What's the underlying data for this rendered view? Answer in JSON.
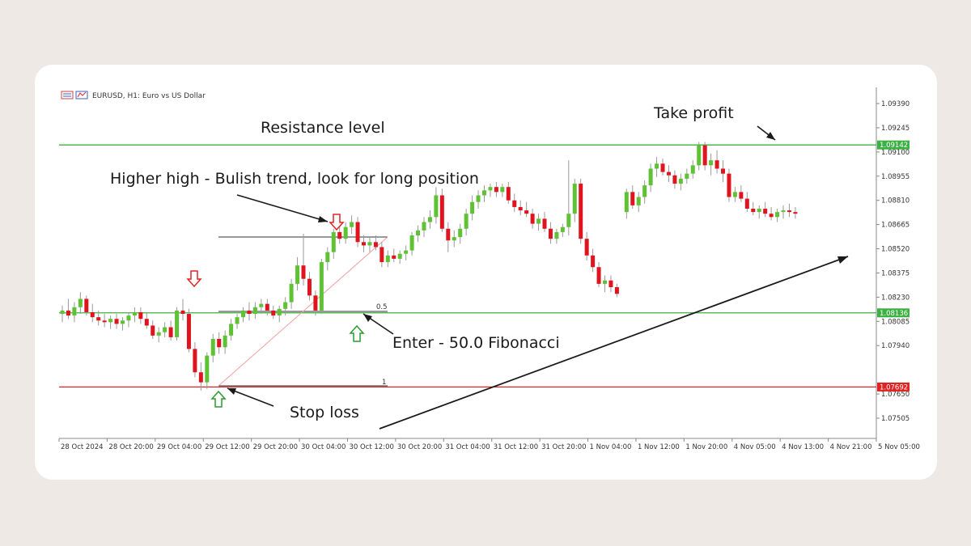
{
  "chart_data": {
    "type": "candlestick",
    "title": "EURUSD, H1:  Euro vs US Dollar",
    "symbol": "EURUSD",
    "timeframe": "H1",
    "description": "Euro vs US Dollar",
    "ylim": [
      1.074,
      1.095
    ],
    "y_ticks": [
      "1.09390",
      "1.09245",
      "1.09100",
      "1.08955",
      "1.08810",
      "1.08665",
      "1.08520",
      "1.08375",
      "1.08230",
      "1.08085",
      "1.07940",
      "1.07650",
      "1.07505"
    ],
    "x_ticks": [
      "28 Oct 2024",
      "28 Oct 20:00",
      "29 Oct 04:00",
      "29 Oct 12:00",
      "29 Oct 20:00",
      "30 Oct 04:00",
      "30 Oct 12:00",
      "30 Oct 20:00",
      "31 Oct 04:00",
      "31 Oct 12:00",
      "31 Oct 20:00",
      "1 Nov 04:00",
      "1 Nov 12:00",
      "1 Nov 20:00",
      "4 Nov 05:00",
      "4 Nov 13:00",
      "4 Nov 21:00",
      "5 Nov 05:00"
    ],
    "levels": [
      {
        "label": "1.09142",
        "value": 1.09142,
        "color": "#3cb043"
      },
      {
        "label": "1.08136",
        "value": 1.08136,
        "color": "#3cb043"
      },
      {
        "label": "1.07692",
        "value": 1.07692,
        "color": "#e02424"
      }
    ],
    "fibonacci": {
      "high": 1.0862,
      "low": 1.077,
      "labels": [
        "0.5",
        "1"
      ]
    },
    "annotations": {
      "resistance": "Resistance level",
      "take_profit": "Take profit",
      "higher_high": "Higher high - Bulish trend, look for long position",
      "enter": "Enter - 50.0 Fibonacci",
      "stop_loss": "Stop loss"
    },
    "colors": {
      "bull": "#5ec234",
      "bear": "#e0141e",
      "wick": "#9a9a9a"
    },
    "candles": [
      {
        "o": 1.0813,
        "h": 1.0818,
        "l": 1.0808,
        "c": 1.0815
      },
      {
        "o": 1.0815,
        "h": 1.0822,
        "l": 1.081,
        "c": 1.0812
      },
      {
        "o": 1.0812,
        "h": 1.082,
        "l": 1.0808,
        "c": 1.0817
      },
      {
        "o": 1.0817,
        "h": 1.0826,
        "l": 1.0813,
        "c": 1.0822
      },
      {
        "o": 1.0822,
        "h": 1.0824,
        "l": 1.0812,
        "c": 1.0814
      },
      {
        "o": 1.0814,
        "h": 1.0819,
        "l": 1.0808,
        "c": 1.0811
      },
      {
        "o": 1.0811,
        "h": 1.0815,
        "l": 1.0806,
        "c": 1.0809
      },
      {
        "o": 1.0809,
        "h": 1.0813,
        "l": 1.0805,
        "c": 1.0808
      },
      {
        "o": 1.0808,
        "h": 1.0812,
        "l": 1.0804,
        "c": 1.081
      },
      {
        "o": 1.081,
        "h": 1.0813,
        "l": 1.0804,
        "c": 1.0807
      },
      {
        "o": 1.0807,
        "h": 1.0811,
        "l": 1.0803,
        "c": 1.0809
      },
      {
        "o": 1.0809,
        "h": 1.0814,
        "l": 1.0805,
        "c": 1.0812
      },
      {
        "o": 1.0812,
        "h": 1.0817,
        "l": 1.0808,
        "c": 1.0814
      },
      {
        "o": 1.0814,
        "h": 1.0817,
        "l": 1.0807,
        "c": 1.081
      },
      {
        "o": 1.081,
        "h": 1.0814,
        "l": 1.0804,
        "c": 1.0806
      },
      {
        "o": 1.0806,
        "h": 1.0809,
        "l": 1.0798,
        "c": 1.08
      },
      {
        "o": 1.08,
        "h": 1.0805,
        "l": 1.0796,
        "c": 1.0802
      },
      {
        "o": 1.0802,
        "h": 1.0808,
        "l": 1.0799,
        "c": 1.0805
      },
      {
        "o": 1.0805,
        "h": 1.0809,
        "l": 1.0797,
        "c": 1.0799
      },
      {
        "o": 1.0799,
        "h": 1.0817,
        "l": 1.0797,
        "c": 1.0815
      },
      {
        "o": 1.0815,
        "h": 1.0822,
        "l": 1.0809,
        "c": 1.0813
      },
      {
        "o": 1.0813,
        "h": 1.0816,
        "l": 1.079,
        "c": 1.0792
      },
      {
        "o": 1.0792,
        "h": 1.0796,
        "l": 1.0775,
        "c": 1.0778
      },
      {
        "o": 1.0778,
        "h": 1.0784,
        "l": 1.0767,
        "c": 1.0772
      },
      {
        "o": 1.0772,
        "h": 1.079,
        "l": 1.0768,
        "c": 1.0788
      },
      {
        "o": 1.0788,
        "h": 1.0801,
        "l": 1.0784,
        "c": 1.0798
      },
      {
        "o": 1.0798,
        "h": 1.0802,
        "l": 1.0789,
        "c": 1.0793
      },
      {
        "o": 1.0793,
        "h": 1.0803,
        "l": 1.0789,
        "c": 1.08
      },
      {
        "o": 1.08,
        "h": 1.081,
        "l": 1.0797,
        "c": 1.0807
      },
      {
        "o": 1.0807,
        "h": 1.0813,
        "l": 1.0804,
        "c": 1.0811
      },
      {
        "o": 1.0811,
        "h": 1.0817,
        "l": 1.0808,
        "c": 1.0815
      },
      {
        "o": 1.0815,
        "h": 1.082,
        "l": 1.0809,
        "c": 1.0813
      },
      {
        "o": 1.0813,
        "h": 1.082,
        "l": 1.081,
        "c": 1.0817
      },
      {
        "o": 1.0817,
        "h": 1.0822,
        "l": 1.0813,
        "c": 1.0819
      },
      {
        "o": 1.0819,
        "h": 1.0822,
        "l": 1.0812,
        "c": 1.0815
      },
      {
        "o": 1.0815,
        "h": 1.0818,
        "l": 1.081,
        "c": 1.0812
      },
      {
        "o": 1.0812,
        "h": 1.0818,
        "l": 1.0808,
        "c": 1.0816
      },
      {
        "o": 1.0816,
        "h": 1.0823,
        "l": 1.0812,
        "c": 1.082
      },
      {
        "o": 1.082,
        "h": 1.0834,
        "l": 1.0816,
        "c": 1.0831
      },
      {
        "o": 1.0831,
        "h": 1.0847,
        "l": 1.0827,
        "c": 1.0842
      },
      {
        "o": 1.0842,
        "h": 1.0861,
        "l": 1.083,
        "c": 1.0834
      },
      {
        "o": 1.0834,
        "h": 1.0838,
        "l": 1.0821,
        "c": 1.0824
      },
      {
        "o": 1.0824,
        "h": 1.0827,
        "l": 1.0812,
        "c": 1.0815
      },
      {
        "o": 1.0815,
        "h": 1.0846,
        "l": 1.0813,
        "c": 1.0844
      },
      {
        "o": 1.0844,
        "h": 1.0853,
        "l": 1.0839,
        "c": 1.085
      },
      {
        "o": 1.085,
        "h": 1.0864,
        "l": 1.0846,
        "c": 1.0862
      },
      {
        "o": 1.0862,
        "h": 1.0866,
        "l": 1.0855,
        "c": 1.0858
      },
      {
        "o": 1.0858,
        "h": 1.0868,
        "l": 1.0855,
        "c": 1.0865
      },
      {
        "o": 1.0865,
        "h": 1.0872,
        "l": 1.0861,
        "c": 1.0868
      },
      {
        "o": 1.0868,
        "h": 1.0871,
        "l": 1.0853,
        "c": 1.0856
      },
      {
        "o": 1.0856,
        "h": 1.086,
        "l": 1.085,
        "c": 1.0854
      },
      {
        "o": 1.0854,
        "h": 1.0859,
        "l": 1.085,
        "c": 1.0856
      },
      {
        "o": 1.0856,
        "h": 1.086,
        "l": 1.0851,
        "c": 1.0853
      },
      {
        "o": 1.0853,
        "h": 1.0856,
        "l": 1.0841,
        "c": 1.0844
      },
      {
        "o": 1.0844,
        "h": 1.0851,
        "l": 1.0841,
        "c": 1.0848
      },
      {
        "o": 1.0848,
        "h": 1.0852,
        "l": 1.0844,
        "c": 1.0846
      },
      {
        "o": 1.0846,
        "h": 1.0851,
        "l": 1.0843,
        "c": 1.0849
      },
      {
        "o": 1.0849,
        "h": 1.0854,
        "l": 1.0845,
        "c": 1.0851
      },
      {
        "o": 1.0851,
        "h": 1.0862,
        "l": 1.0848,
        "c": 1.086
      },
      {
        "o": 1.086,
        "h": 1.0866,
        "l": 1.0856,
        "c": 1.0863
      },
      {
        "o": 1.0863,
        "h": 1.0871,
        "l": 1.0859,
        "c": 1.0868
      },
      {
        "o": 1.0868,
        "h": 1.0875,
        "l": 1.0864,
        "c": 1.0871
      },
      {
        "o": 1.0871,
        "h": 1.0889,
        "l": 1.0867,
        "c": 1.0884
      },
      {
        "o": 1.0884,
        "h": 1.0888,
        "l": 1.0862,
        "c": 1.0864
      },
      {
        "o": 1.0864,
        "h": 1.0868,
        "l": 1.085,
        "c": 1.0857
      },
      {
        "o": 1.0857,
        "h": 1.0863,
        "l": 1.0853,
        "c": 1.0859
      },
      {
        "o": 1.0859,
        "h": 1.0867,
        "l": 1.0855,
        "c": 1.0864
      },
      {
        "o": 1.0864,
        "h": 1.0876,
        "l": 1.086,
        "c": 1.0873
      },
      {
        "o": 1.0873,
        "h": 1.0884,
        "l": 1.0869,
        "c": 1.088
      },
      {
        "o": 1.088,
        "h": 1.0887,
        "l": 1.0876,
        "c": 1.0884
      },
      {
        "o": 1.0884,
        "h": 1.089,
        "l": 1.088,
        "c": 1.0887
      },
      {
        "o": 1.0887,
        "h": 1.0891,
        "l": 1.0883,
        "c": 1.0889
      },
      {
        "o": 1.0889,
        "h": 1.0892,
        "l": 1.0883,
        "c": 1.0886
      },
      {
        "o": 1.0886,
        "h": 1.0891,
        "l": 1.0883,
        "c": 1.0889
      },
      {
        "o": 1.0889,
        "h": 1.0892,
        "l": 1.0879,
        "c": 1.0881
      },
      {
        "o": 1.0881,
        "h": 1.0885,
        "l": 1.0874,
        "c": 1.0877
      },
      {
        "o": 1.0877,
        "h": 1.0881,
        "l": 1.0872,
        "c": 1.0875
      },
      {
        "o": 1.0875,
        "h": 1.088,
        "l": 1.0871,
        "c": 1.0873
      },
      {
        "o": 1.0873,
        "h": 1.0876,
        "l": 1.0864,
        "c": 1.0867
      },
      {
        "o": 1.0867,
        "h": 1.0873,
        "l": 1.0863,
        "c": 1.087
      },
      {
        "o": 1.087,
        "h": 1.0874,
        "l": 1.0862,
        "c": 1.0864
      },
      {
        "o": 1.0864,
        "h": 1.0868,
        "l": 1.0855,
        "c": 1.0858
      },
      {
        "o": 1.0858,
        "h": 1.0864,
        "l": 1.0855,
        "c": 1.0862
      },
      {
        "o": 1.0862,
        "h": 1.0867,
        "l": 1.0859,
        "c": 1.0865
      },
      {
        "o": 1.0865,
        "h": 1.0905,
        "l": 1.086,
        "c": 1.0873
      },
      {
        "o": 1.0873,
        "h": 1.0894,
        "l": 1.0868,
        "c": 1.0891
      },
      {
        "o": 1.0891,
        "h": 1.0894,
        "l": 1.0855,
        "c": 1.0858
      },
      {
        "o": 1.0858,
        "h": 1.0862,
        "l": 1.0845,
        "c": 1.0848
      },
      {
        "o": 1.0848,
        "h": 1.0852,
        "l": 1.0838,
        "c": 1.0841
      },
      {
        "o": 1.0841,
        "h": 1.0844,
        "l": 1.0829,
        "c": 1.0831
      },
      {
        "o": 1.0831,
        "h": 1.0836,
        "l": 1.0826,
        "c": 1.0833
      },
      {
        "o": 1.0833,
        "h": 1.0836,
        "l": 1.0826,
        "c": 1.0829
      },
      {
        "o": 1.0829,
        "h": 1.0831,
        "l": 1.0823,
        "c": 1.0825
      },
      {
        "gap": true
      },
      {
        "o": 1.0874,
        "h": 1.0888,
        "l": 1.087,
        "c": 1.0886
      },
      {
        "o": 1.0886,
        "h": 1.089,
        "l": 1.0876,
        "c": 1.0878
      },
      {
        "o": 1.0878,
        "h": 1.0886,
        "l": 1.0874,
        "c": 1.0883
      },
      {
        "o": 1.0883,
        "h": 1.0893,
        "l": 1.0879,
        "c": 1.089
      },
      {
        "o": 1.089,
        "h": 1.0903,
        "l": 1.0886,
        "c": 1.09
      },
      {
        "o": 1.09,
        "h": 1.0907,
        "l": 1.0895,
        "c": 1.0903
      },
      {
        "o": 1.0903,
        "h": 1.0906,
        "l": 1.0896,
        "c": 1.0898
      },
      {
        "o": 1.0898,
        "h": 1.0902,
        "l": 1.0892,
        "c": 1.0896
      },
      {
        "o": 1.0896,
        "h": 1.0899,
        "l": 1.0888,
        "c": 1.0891
      },
      {
        "o": 1.0891,
        "h": 1.0897,
        "l": 1.0887,
        "c": 1.0894
      },
      {
        "o": 1.0894,
        "h": 1.09,
        "l": 1.0891,
        "c": 1.0897
      },
      {
        "o": 1.0897,
        "h": 1.0905,
        "l": 1.0894,
        "c": 1.0902
      },
      {
        "o": 1.0902,
        "h": 1.0916,
        "l": 1.0899,
        "c": 1.0914
      },
      {
        "o": 1.0914,
        "h": 1.0916,
        "l": 1.0899,
        "c": 1.0902
      },
      {
        "o": 1.0902,
        "h": 1.0909,
        "l": 1.0896,
        "c": 1.0905
      },
      {
        "o": 1.0905,
        "h": 1.0911,
        "l": 1.0897,
        "c": 1.09
      },
      {
        "o": 1.09,
        "h": 1.0905,
        "l": 1.0892,
        "c": 1.0897
      },
      {
        "o": 1.0897,
        "h": 1.09,
        "l": 1.088,
        "c": 1.0883
      },
      {
        "o": 1.0883,
        "h": 1.0889,
        "l": 1.088,
        "c": 1.0886
      },
      {
        "o": 1.0886,
        "h": 1.089,
        "l": 1.088,
        "c": 1.0882
      },
      {
        "o": 1.0882,
        "h": 1.0886,
        "l": 1.0874,
        "c": 1.0876
      },
      {
        "o": 1.0876,
        "h": 1.088,
        "l": 1.0872,
        "c": 1.0874
      },
      {
        "o": 1.0874,
        "h": 1.0878,
        "l": 1.087,
        "c": 1.0876
      },
      {
        "o": 1.0876,
        "h": 1.088,
        "l": 1.0871,
        "c": 1.0873
      },
      {
        "o": 1.0873,
        "h": 1.0877,
        "l": 1.0869,
        "c": 1.0871
      },
      {
        "o": 1.0871,
        "h": 1.0876,
        "l": 1.0868,
        "c": 1.0874
      },
      {
        "o": 1.0874,
        "h": 1.0878,
        "l": 1.087,
        "c": 1.0875
      },
      {
        "o": 1.0875,
        "h": 1.0879,
        "l": 1.0871,
        "c": 1.0874
      },
      {
        "o": 1.0874,
        "h": 1.0877,
        "l": 1.087,
        "c": 1.0873
      }
    ]
  }
}
